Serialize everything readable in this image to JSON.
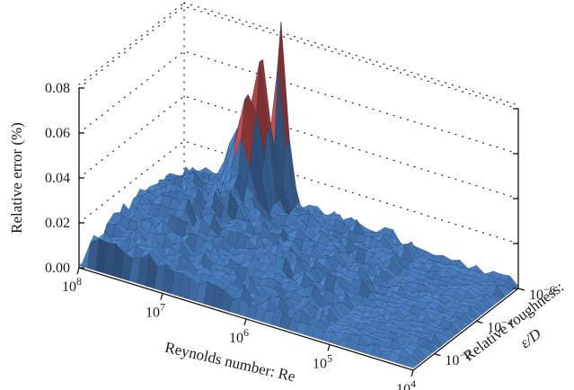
{
  "chart_data": {
    "type": "surface",
    "title": "",
    "zlabel": "Relative error (%)",
    "xlabel": "Reynolds number: Re",
    "ylabel_line1": "Relative roughness:",
    "ylabel_line2": "ε/D",
    "zlim": [
      0,
      0.08
    ],
    "z_ticks": [
      {
        "value": 0.0,
        "label": "0.00"
      },
      {
        "value": 0.02,
        "label": "0.02"
      },
      {
        "value": 0.04,
        "label": "0.04"
      },
      {
        "value": 0.06,
        "label": "0.06"
      },
      {
        "value": 0.08,
        "label": "0.08"
      }
    ],
    "x_scale": "log",
    "x_ticks": [
      {
        "value": 100000000,
        "base": "10",
        "exp": "8"
      },
      {
        "value": 10000000,
        "base": "10",
        "exp": "7"
      },
      {
        "value": 1000000,
        "base": "10",
        "exp": "6"
      },
      {
        "value": 100000,
        "base": "10",
        "exp": "5"
      },
      {
        "value": 10000,
        "base": "10",
        "exp": "4"
      }
    ],
    "y_scale": "log",
    "y_ticks": [
      {
        "value": 1e-06,
        "base": "10",
        "exp": "−6"
      },
      {
        "value": 0.0001,
        "base": "10",
        "exp": "−4"
      },
      {
        "value": 0.01,
        "base": "10",
        "exp": "−2"
      }
    ],
    "color_bands": [
      {
        "range": [
          0,
          0.04
        ],
        "color": "#4a7fc1"
      },
      {
        "range": [
          0.04,
          0.065
        ],
        "color": "#c84a4a"
      },
      {
        "range": [
          0.065,
          0.09
        ],
        "color": "#8aaa4a"
      }
    ],
    "peaks": [
      {
        "log10_re": 6.8,
        "log10_roughness": -5.8,
        "relative_error": 0.092
      },
      {
        "log10_re": 6.9,
        "log10_roughness": -5.3,
        "relative_error": 0.08
      },
      {
        "log10_re": 7.0,
        "log10_roughness": -5.0,
        "relative_error": 0.06
      },
      {
        "log10_re": 7.2,
        "log10_roughness": -5.4,
        "relative_error": 0.04
      }
    ]
  }
}
